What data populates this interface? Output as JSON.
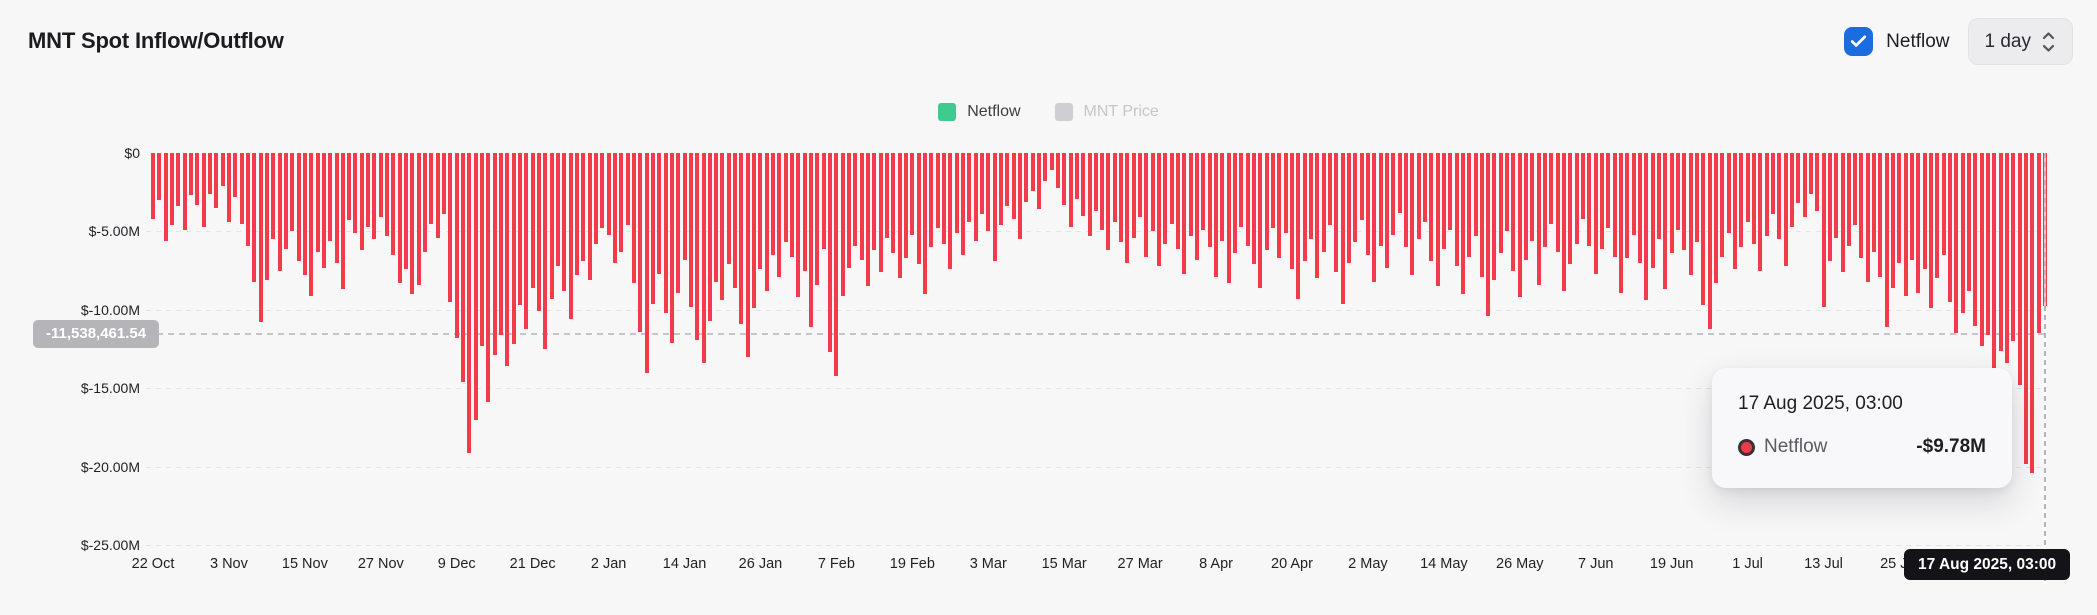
{
  "header": {
    "title": "MNT Spot Inflow/Outflow"
  },
  "controls": {
    "netflow_checkbox": {
      "label": "Netflow",
      "checked": true,
      "color": "#1b6be1"
    },
    "interval_select": {
      "value": "1 day"
    }
  },
  "legend": {
    "items": [
      {
        "label": "Netflow",
        "swatch_color": "#3fcb8d",
        "active": true
      },
      {
        "label": "MNT Price",
        "swatch_color": "#cfcfd3",
        "active": false
      }
    ]
  },
  "current_value_tag": {
    "text": "-11,538,461.54",
    "value_m": -11.538
  },
  "x_axis_tag": {
    "text": "17 Aug 2025, 03:00"
  },
  "tooltip": {
    "title": "17 Aug 2025, 03:00",
    "series": "Netflow",
    "value": "-$9.78M",
    "dot_color": "#ef3b47"
  },
  "chart_data": {
    "type": "bar",
    "title": "MNT Spot Inflow/Outflow",
    "series_name": "Netflow",
    "unit": "USD millions",
    "bar_color": "#f23c4b",
    "grid": "dashed horizontal",
    "legend_position": "top-center",
    "ylim": [
      -25,
      0
    ],
    "y_tick_labels": [
      "$0",
      "$-5.00M",
      "$-10.00M",
      "$-15.00M",
      "$-20.00M",
      "$-25.00M"
    ],
    "y_tick_values_m": [
      0,
      -5,
      -10,
      -15,
      -20,
      -25
    ],
    "x_tick_labels": [
      "22 Oct",
      "3 Nov",
      "15 Nov",
      "27 Nov",
      "9 Dec",
      "21 Dec",
      "2 Jan",
      "14 Jan",
      "26 Jan",
      "7 Feb",
      "19 Feb",
      "3 Mar",
      "15 Mar",
      "27 Mar",
      "8 Apr",
      "20 Apr",
      "2 May",
      "14 May",
      "26 May",
      "7 Jun",
      "19 Jun",
      "1 Jul",
      "13 Jul",
      "25 Jul"
    ],
    "x_tick_interval_days": 12,
    "start_date": "22 Oct 2024",
    "end_date": "17 Aug 2025",
    "interval": "1 day",
    "reference_line_value_m": -11.538,
    "hovered_point": {
      "date": "17 Aug 2025, 03:00",
      "value_m": -9.78,
      "value_label": "-$9.78M"
    },
    "values_m": [
      -4.2,
      -3.0,
      -5.6,
      -4.6,
      -3.4,
      -4.9,
      -2.7,
      -3.3,
      -4.7,
      -2.6,
      -3.5,
      -2.1,
      -4.4,
      -2.8,
      -4.5,
      -5.9,
      -8.2,
      -10.8,
      -8.1,
      -5.5,
      -7.5,
      -6.1,
      -5.0,
      -6.9,
      -7.8,
      -9.1,
      -6.3,
      -7.3,
      -5.6,
      -7.0,
      -8.7,
      -4.3,
      -5.1,
      -6.2,
      -4.7,
      -5.5,
      -4.1,
      -5.3,
      -6.5,
      -8.3,
      -7.4,
      -9.0,
      -8.4,
      -6.3,
      -4.5,
      -5.4,
      -3.9,
      -9.5,
      -11.8,
      -14.6,
      -19.1,
      -17.0,
      -12.3,
      -15.9,
      -12.9,
      -11.6,
      -13.6,
      -12.2,
      -9.7,
      -11.2,
      -8.6,
      -10.1,
      -12.5,
      -9.3,
      -7.2,
      -8.8,
      -10.6,
      -7.8,
      -6.9,
      -8.1,
      -5.8,
      -4.8,
      -5.2,
      -7.0,
      -6.3,
      -4.6,
      -8.3,
      -11.4,
      -14.0,
      -9.6,
      -7.7,
      -10.2,
      -12.1,
      -8.9,
      -6.8,
      -9.8,
      -11.9,
      -13.4,
      -10.7,
      -8.2,
      -9.4,
      -7.1,
      -8.6,
      -10.9,
      -13.0,
      -9.9,
      -7.4,
      -8.8,
      -6.5,
      -7.9,
      -5.7,
      -6.6,
      -9.2,
      -7.5,
      -11.1,
      -8.4,
      -6.1,
      -12.7,
      -14.2,
      -9.1,
      -7.3,
      -5.9,
      -6.8,
      -8.5,
      -6.2,
      -7.6,
      -5.4,
      -6.4,
      -8.0,
      -6.7,
      -5.2,
      -7.1,
      -9.0,
      -6.0,
      -4.8,
      -5.8,
      -7.4,
      -5.1,
      -6.5,
      -4.4,
      -5.6,
      -3.9,
      -5.0,
      -6.9,
      -4.6,
      -3.4,
      -4.2,
      -5.5,
      -3.1,
      -2.4,
      -3.6,
      -1.8,
      -1.1,
      -2.2,
      -3.3,
      -4.7,
      -2.9,
      -4.0,
      -5.3,
      -3.7,
      -4.9,
      -6.2,
      -4.4,
      -5.7,
      -7.0,
      -5.4,
      -4.1,
      -6.6,
      -5.0,
      -7.2,
      -5.8,
      -4.5,
      -6.1,
      -7.7,
      -5.3,
      -6.8,
      -4.9,
      -6.0,
      -7.9,
      -5.6,
      -8.3,
      -6.4,
      -4.7,
      -5.9,
      -7.1,
      -8.6,
      -6.2,
      -4.8,
      -6.7,
      -5.1,
      -7.4,
      -9.3,
      -6.9,
      -5.5,
      -8.0,
      -6.3,
      -4.6,
      -7.6,
      -9.6,
      -7.0,
      -5.7,
      -4.3,
      -6.5,
      -8.2,
      -5.9,
      -7.3,
      -5.2,
      -3.8,
      -6.0,
      -7.8,
      -5.5,
      -4.4,
      -6.9,
      -8.5,
      -6.1,
      -4.9,
      -7.2,
      -9.0,
      -6.6,
      -5.3,
      -7.9,
      -10.4,
      -8.1,
      -6.4,
      -5.0,
      -7.5,
      -9.2,
      -6.8,
      -5.6,
      -8.4,
      -6.0,
      -4.5,
      -6.3,
      -8.8,
      -7.1,
      -5.8,
      -4.2,
      -5.9,
      -7.7,
      -6.1,
      -4.8,
      -6.6,
      -8.9,
      -6.7,
      -5.2,
      -7.0,
      -9.4,
      -7.3,
      -5.5,
      -8.7,
      -6.4,
      -4.9,
      -6.2,
      -7.8,
      -5.7,
      -9.7,
      -11.2,
      -8.3,
      -6.6,
      -5.1,
      -7.4,
      -6.0,
      -4.4,
      -5.8,
      -7.5,
      -5.3,
      -3.9,
      -5.5,
      -7.2,
      -4.7,
      -3.2,
      -4.1,
      -2.6,
      -3.7,
      -9.8,
      -6.9,
      -5.4,
      -7.6,
      -5.9,
      -4.6,
      -6.7,
      -8.2,
      -6.3,
      -7.9,
      -11.1,
      -8.6,
      -7.0,
      -9.1,
      -6.8,
      -8.9,
      -7.4,
      -9.9,
      -8.0,
      -6.5,
      -9.5,
      -11.5,
      -10.2,
      -8.8,
      -11.0,
      -12.3,
      -11.6,
      -14.2,
      -12.6,
      -13.4,
      -12.0,
      -14.8,
      -19.8,
      -20.4,
      -11.5,
      -9.78
    ]
  }
}
